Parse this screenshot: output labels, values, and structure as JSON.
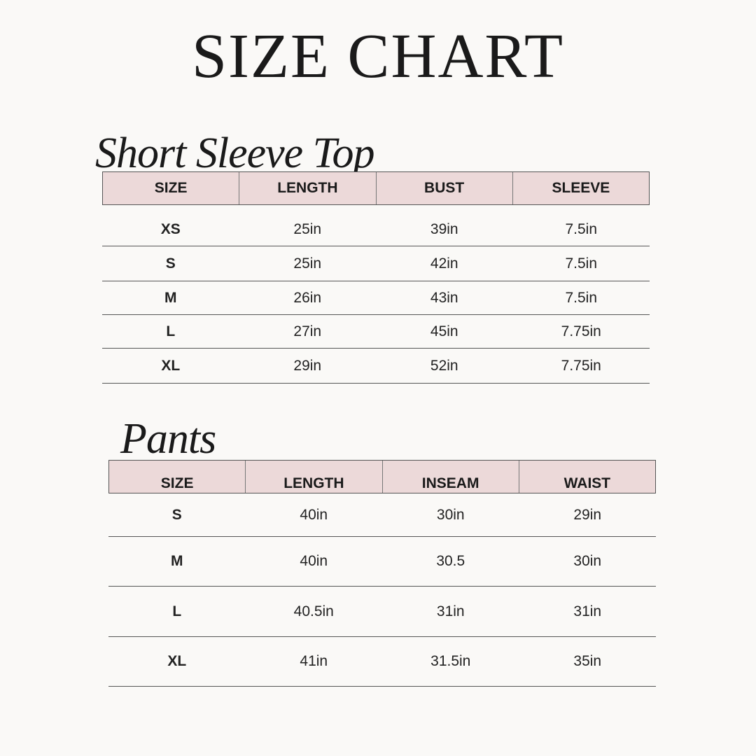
{
  "title": "SIZE CHART",
  "tops": {
    "heading": "Short Sleeve Top",
    "columns": [
      "SIZE",
      "LENGTH",
      "BUST",
      "SLEEVE"
    ],
    "rows": [
      [
        "XS",
        "25in",
        "39in",
        "7.5in"
      ],
      [
        "S",
        "25in",
        "42in",
        "7.5in"
      ],
      [
        "M",
        "26in",
        "43in",
        "7.5in"
      ],
      [
        "L",
        "27in",
        "45in",
        "7.75in"
      ],
      [
        "XL",
        "29in",
        "52in",
        "7.75in"
      ]
    ]
  },
  "pants": {
    "heading": "Pants",
    "columns": [
      "SIZE",
      "LENGTH",
      "INSEAM",
      "WAIST"
    ],
    "rows": [
      [
        "S",
        "40in",
        "30in",
        "29in"
      ],
      [
        "M",
        "40in",
        "30.5",
        "30in"
      ],
      [
        "L",
        "40.5in",
        "31in",
        "31in"
      ],
      [
        "XL",
        "41in",
        "31.5in",
        "35in"
      ]
    ]
  },
  "colors": {
    "header_bg": "#ecd9d9",
    "background": "#faf9f7"
  }
}
